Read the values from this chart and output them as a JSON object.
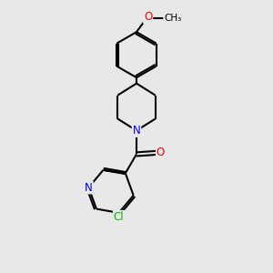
{
  "background_color": "#e8e8e8",
  "bond_color": "#000000",
  "bond_width": 1.5,
  "atom_colors": {
    "N": "#0000ff",
    "O": "#ff0000",
    "Cl": "#00bb00",
    "C": "#000000"
  },
  "font_size_label": 8.5,
  "fig_width": 3.0,
  "fig_height": 3.0,
  "dpi": 100
}
